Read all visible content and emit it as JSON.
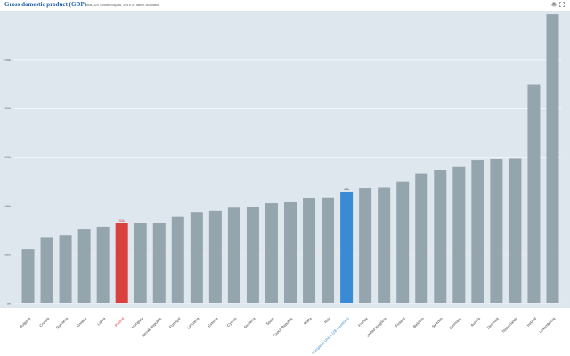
{
  "header": {
    "title": "Gross domestic product (GDP)",
    "subtitle": "Total, US dollars/capita, 2019 or latest available",
    "icons": [
      "print-icon",
      "fullscreen-icon"
    ]
  },
  "colors": {
    "plot_bg": "#dfe7ee",
    "bar": "#94a5ae",
    "highlight": "#d9413f",
    "reference": "#3a8bd6",
    "grid": "#ffffff",
    "tick": "#555555"
  },
  "chart_data": {
    "type": "bar",
    "title": "Gross domestic product (GDP)",
    "subtitle": "Total, US dollars/capita, 2019 or latest available",
    "xlabel": "",
    "ylabel": "",
    "ylim": [
      0,
      120000
    ],
    "yticks": [
      0,
      20000,
      40000,
      60000,
      80000,
      100000
    ],
    "ytick_labels": [
      "0k",
      "20k",
      "40k",
      "60k",
      "80k",
      "100k"
    ],
    "grid": true,
    "categories": [
      "Bulgaria",
      "Croatia",
      "Romania",
      "Greece",
      "Latvia",
      "Poland",
      "Hungary",
      "Slovak Republic",
      "Portugal",
      "Lithuania",
      "Estonia",
      "Cyprus",
      "Slovenia",
      "Spain",
      "Czech Republic",
      "Malta",
      "Italy",
      "European Union (28 countries)",
      "France",
      "United Kingdom",
      "Finland",
      "Belgium",
      "Sweden",
      "Germany",
      "Austria",
      "Denmark",
      "Netherlands",
      "Ireland",
      "Luxembourg"
    ],
    "values": [
      22200,
      27200,
      28000,
      30600,
      31400,
      32900,
      33100,
      33000,
      35500,
      37500,
      38000,
      39300,
      39400,
      41200,
      41600,
      43200,
      43500,
      45600,
      47400,
      47600,
      50100,
      53400,
      54700,
      55900,
      58700,
      59100,
      59300,
      89900,
      118500
    ],
    "highlight": {
      "category": "Poland",
      "label": "33k"
    },
    "reference": {
      "category": "European Union (28 countries)",
      "label": "46k"
    }
  }
}
